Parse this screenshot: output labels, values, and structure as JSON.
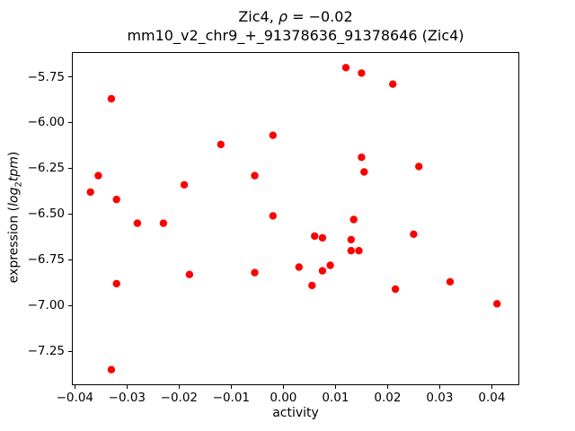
{
  "title": {
    "part1": "Zic4, ",
    "rho": "ρ",
    "part2": " = −0.02",
    "line2": "mm10_v2_chr9_+_91378636_91378646 (Zic4)"
  },
  "axes": {
    "xlabel": "activity",
    "ylabel_prefix": "expression (",
    "ylabel_log": "log",
    "ylabel_sub": "2",
    "ylabel_var": "tpm",
    "ylabel_suffix": ")"
  },
  "chart_data": {
    "type": "scatter",
    "title": "Zic4, ρ = −0.02",
    "subtitle": "mm10_v2_chr9_+_91378636_91378646 (Zic4)",
    "xlabel": "activity",
    "ylabel": "expression (log2 tpm)",
    "legend": "none",
    "grid": false,
    "marker_color": "#ff0000",
    "marker_radius": 4.2,
    "xlim": [
      -0.0404,
      0.0451
    ],
    "ylim": [
      -7.43,
      -5.62
    ],
    "xticks": [
      {
        "v": -0.04,
        "label": "−0.04"
      },
      {
        "v": -0.03,
        "label": "−0.03"
      },
      {
        "v": -0.02,
        "label": "−0.02"
      },
      {
        "v": -0.01,
        "label": "−0.01"
      },
      {
        "v": 0.0,
        "label": "0.00"
      },
      {
        "v": 0.01,
        "label": "0.01"
      },
      {
        "v": 0.02,
        "label": "0.02"
      },
      {
        "v": 0.03,
        "label": "0.03"
      },
      {
        "v": 0.04,
        "label": "0.04"
      }
    ],
    "yticks": [
      {
        "v": -5.75,
        "label": "−5.75"
      },
      {
        "v": -6.0,
        "label": "−6.00"
      },
      {
        "v": -6.25,
        "label": "−6.25"
      },
      {
        "v": -6.5,
        "label": "−6.50"
      },
      {
        "v": -6.75,
        "label": "−6.75"
      },
      {
        "v": -7.0,
        "label": "−7.00"
      },
      {
        "v": -7.25,
        "label": "−7.25"
      }
    ],
    "points": [
      [
        0.012,
        -5.7
      ],
      [
        0.015,
        -5.73
      ],
      [
        0.021,
        -5.79
      ],
      [
        -0.033,
        -5.87
      ],
      [
        -0.002,
        -6.07
      ],
      [
        -0.012,
        -6.12
      ],
      [
        0.015,
        -6.19
      ],
      [
        0.026,
        -6.24
      ],
      [
        0.0155,
        -6.27
      ],
      [
        -0.0355,
        -6.29
      ],
      [
        -0.0055,
        -6.29
      ],
      [
        -0.037,
        -6.38
      ],
      [
        -0.019,
        -6.34
      ],
      [
        -0.032,
        -6.42
      ],
      [
        -0.028,
        -6.55
      ],
      [
        -0.023,
        -6.55
      ],
      [
        -0.002,
        -6.51
      ],
      [
        0.0135,
        -6.53
      ],
      [
        0.025,
        -6.61
      ],
      [
        0.006,
        -6.62
      ],
      [
        0.0075,
        -6.63
      ],
      [
        0.013,
        -6.64
      ],
      [
        0.013,
        -6.7
      ],
      [
        0.0145,
        -6.7
      ],
      [
        0.003,
        -6.79
      ],
      [
        0.009,
        -6.78
      ],
      [
        0.0075,
        -6.81
      ],
      [
        -0.0055,
        -6.82
      ],
      [
        -0.018,
        -6.83
      ],
      [
        0.0055,
        -6.89
      ],
      [
        -0.032,
        -6.88
      ],
      [
        0.0215,
        -6.91
      ],
      [
        0.032,
        -6.87
      ],
      [
        0.041,
        -6.99
      ],
      [
        -0.033,
        -7.35
      ]
    ]
  }
}
